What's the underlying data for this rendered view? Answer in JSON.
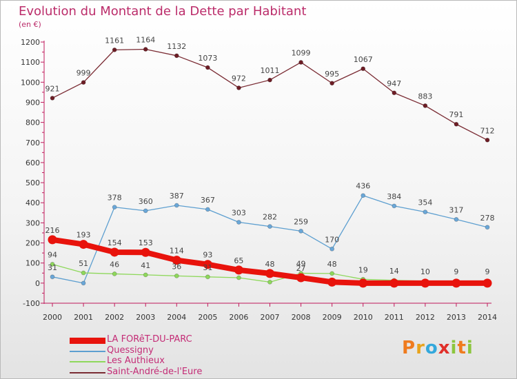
{
  "chart_data": {
    "type": "line",
    "title": "Evolution du Montant de la Dette par Habitant",
    "subtitle": "(en €)",
    "x": [
      "2000",
      "2001",
      "2002",
      "2003",
      "2004",
      "2005",
      "2006",
      "2007",
      "2008",
      "2009",
      "2010",
      "2011",
      "2012",
      "2013",
      "2014"
    ],
    "ylim": [
      -100,
      1200
    ],
    "yticks": [
      -100,
      0,
      100,
      200,
      300,
      400,
      500,
      600,
      700,
      800,
      900,
      1000,
      1100,
      1200
    ],
    "grid": false,
    "legend_position": "bottom-left",
    "series": [
      {
        "name": "LA FORêT-DU-PARC",
        "color": "#e8130c",
        "marker": "#e8130c",
        "values": [
          216,
          193,
          154,
          153,
          114,
          93,
          65,
          48,
          27,
          5,
          0,
          0,
          0,
          0,
          0
        ],
        "labels": [
          "216",
          "193",
          "154",
          "153",
          "114",
          "93",
          "65",
          "48",
          "27",
          "",
          "",
          "",
          "",
          "",
          ""
        ]
      },
      {
        "name": "Quessigny",
        "color": "#5d9fd0",
        "marker": "#6aa7d8",
        "values": [
          31,
          0,
          378,
          360,
          387,
          367,
          303,
          282,
          259,
          170,
          436,
          384,
          354,
          317,
          278
        ],
        "labels": [
          "31",
          "",
          "378",
          "360",
          "387",
          "367",
          "303",
          "282",
          "259",
          "170",
          "436",
          "384",
          "354",
          "317",
          "278"
        ]
      },
      {
        "name": "Les Authieux",
        "color": "#8ed85b",
        "marker": "#8ed85b",
        "values": [
          94,
          51,
          46,
          41,
          36,
          31,
          27,
          5,
          49,
          48,
          19,
          14,
          10,
          9,
          9
        ],
        "labels": [
          "94",
          "51",
          "46",
          "41",
          "36",
          "31",
          "",
          "",
          "49",
          "48",
          "19",
          "14",
          "10",
          "9",
          "9"
        ]
      },
      {
        "name": "Saint-André-de-l'Eure",
        "color": "#7a2b33",
        "marker": "#6d1d25",
        "values": [
          921,
          999,
          1161,
          1164,
          1132,
          1073,
          972,
          1011,
          1099,
          995,
          1067,
          947,
          883,
          791,
          712
        ],
        "labels": [
          "921",
          "999",
          "1161",
          "1164",
          "1132",
          "1073",
          "972",
          "1011",
          "1099",
          "995",
          "1067",
          "947",
          "883",
          "791",
          "712"
        ]
      }
    ]
  },
  "brand": {
    "letters": [
      "P",
      "r",
      "o",
      "x",
      "i",
      "t",
      "i"
    ],
    "colors": [
      "#ef7b1e",
      "#e8a31c",
      "#33a8dc",
      "#e0302a",
      "#8cc63e",
      "#ef7b1e",
      "#8cc63e"
    ]
  }
}
